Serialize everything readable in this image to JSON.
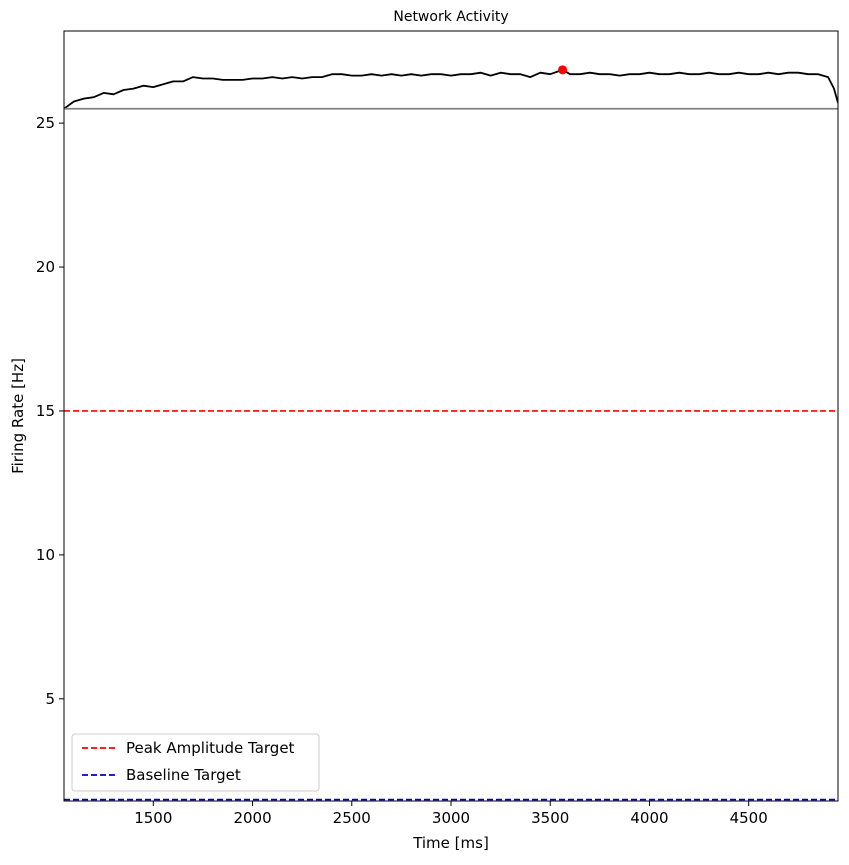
{
  "chart_data": {
    "type": "line",
    "title": "Network Activity",
    "xlabel": "Time [ms]",
    "ylabel": "Firing Rate [Hz]",
    "xlim": [
      1050,
      4950
    ],
    "ylim": [
      1.45,
      28.2
    ],
    "xticks": [
      1500,
      2000,
      2500,
      3000,
      3500,
      4000,
      4500
    ],
    "yticks": [
      5,
      10,
      15,
      20,
      25
    ],
    "grid": false,
    "legend_position": "lower-left",
    "series": [
      {
        "kind": "line",
        "color": "#000000",
        "x": [
          1050,
          1100,
          1150,
          1200,
          1250,
          1300,
          1350,
          1400,
          1450,
          1500,
          1550,
          1600,
          1650,
          1700,
          1750,
          1800,
          1850,
          1900,
          1950,
          2000,
          2050,
          2100,
          2150,
          2200,
          2250,
          2300,
          2350,
          2400,
          2450,
          2500,
          2550,
          2600,
          2650,
          2700,
          2750,
          2800,
          2850,
          2900,
          2950,
          3000,
          3050,
          3100,
          3150,
          3200,
          3250,
          3300,
          3350,
          3400,
          3450,
          3500,
          3562,
          3600,
          3650,
          3700,
          3750,
          3800,
          3850,
          3900,
          3950,
          4000,
          4050,
          4100,
          4150,
          4200,
          4250,
          4300,
          4350,
          4400,
          4450,
          4500,
          4550,
          4600,
          4650,
          4700,
          4750,
          4800,
          4850,
          4900,
          4930,
          4950
        ],
        "y": [
          25.5,
          25.75,
          25.85,
          25.9,
          26.05,
          26.0,
          26.15,
          26.2,
          26.3,
          26.25,
          26.35,
          26.45,
          26.45,
          26.6,
          26.55,
          26.55,
          26.5,
          26.5,
          26.5,
          26.55,
          26.55,
          26.6,
          26.55,
          26.6,
          26.55,
          26.6,
          26.6,
          26.7,
          26.7,
          26.65,
          26.65,
          26.7,
          26.65,
          26.7,
          26.65,
          26.7,
          26.65,
          26.7,
          26.7,
          26.65,
          26.7,
          26.7,
          26.75,
          26.65,
          26.75,
          26.7,
          26.7,
          26.6,
          26.75,
          26.7,
          26.85,
          26.7,
          26.7,
          26.75,
          26.7,
          26.7,
          26.65,
          26.7,
          26.7,
          26.75,
          26.7,
          26.7,
          26.75,
          26.7,
          26.7,
          26.75,
          26.7,
          26.7,
          26.75,
          26.7,
          26.7,
          26.75,
          26.7,
          26.75,
          26.75,
          26.7,
          26.7,
          26.6,
          26.2,
          25.7
        ]
      },
      {
        "kind": "hline",
        "color": "#808080",
        "y": 25.5
      },
      {
        "kind": "point",
        "color": "#ff0000",
        "x": 3562,
        "y": 26.85
      },
      {
        "kind": "hline",
        "dashed": true,
        "color": "#ff0000",
        "name": "Peak Amplitude Target",
        "y": 15
      },
      {
        "kind": "hline",
        "dashed": true,
        "color": "#0000cc",
        "name": "Baseline Target",
        "y": 1.5
      }
    ]
  }
}
